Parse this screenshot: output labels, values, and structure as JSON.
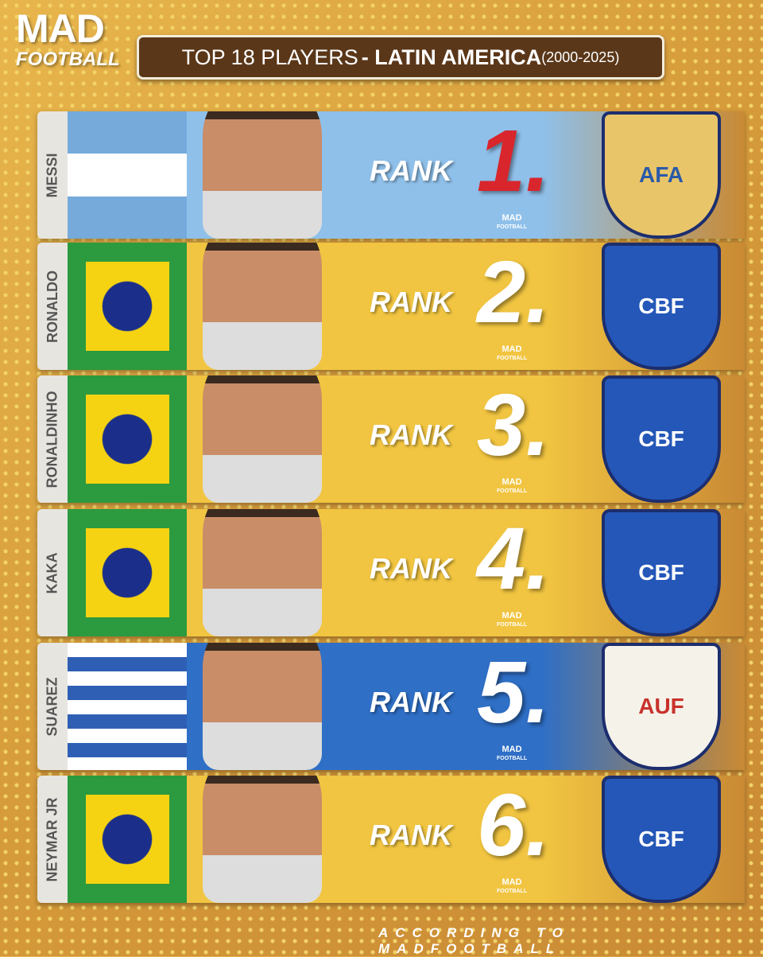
{
  "logo": {
    "line1": "MAD",
    "line2": "FOOTBALL"
  },
  "title": {
    "part1": "TOP 18 PLAYERS",
    "part2": "- LATIN AMERICA",
    "part3": "(2000-2025)"
  },
  "rank_label": "RANK",
  "watermark": "MAD",
  "watermark2": "FOOTBALL",
  "players": [
    {
      "name": "MESSI",
      "rank": "1.",
      "badge": "AFA",
      "country": "Argentina",
      "band": "#8fc0ea",
      "num_color": "#d8262c"
    },
    {
      "name": "RONALDO",
      "rank": "2.",
      "badge": "CBF",
      "country": "Brazil",
      "band": "#f1c541",
      "num_color": "#ffffff"
    },
    {
      "name": "RONALDINHO",
      "rank": "3.",
      "badge": "CBF",
      "country": "Brazil",
      "band": "#f1c541",
      "num_color": "#ffffff"
    },
    {
      "name": "KAKA",
      "rank": "4.",
      "badge": "CBF",
      "country": "Brazil",
      "band": "#f1c541",
      "num_color": "#ffffff"
    },
    {
      "name": "SUAREZ",
      "rank": "5.",
      "badge": "AUF",
      "country": "Uruguay",
      "band": "#2f6fc6",
      "num_color": "#ffffff"
    },
    {
      "name": "NEYMAR JR",
      "rank": "6.",
      "badge": "CBF",
      "country": "Brazil",
      "band": "#f1c541",
      "num_color": "#ffffff"
    }
  ],
  "footer": "ACCORDING TO MADFOOTBALL"
}
